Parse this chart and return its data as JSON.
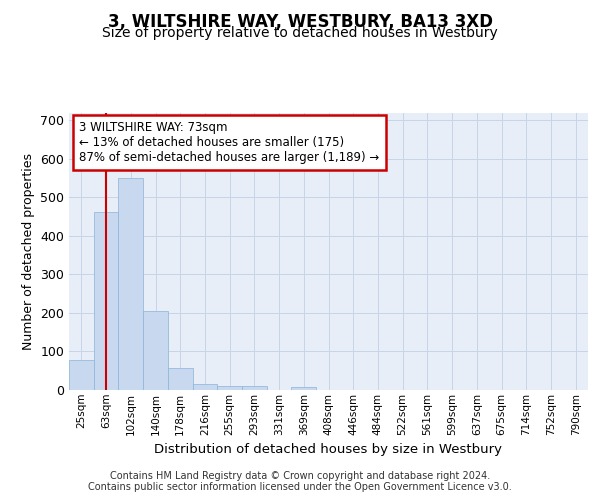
{
  "title": "3, WILTSHIRE WAY, WESTBURY, BA13 3XD",
  "subtitle": "Size of property relative to detached houses in Westbury",
  "xlabel": "Distribution of detached houses by size in Westbury",
  "ylabel": "Number of detached properties",
  "categories": [
    "25sqm",
    "63sqm",
    "102sqm",
    "140sqm",
    "178sqm",
    "216sqm",
    "255sqm",
    "293sqm",
    "331sqm",
    "369sqm",
    "408sqm",
    "446sqm",
    "484sqm",
    "522sqm",
    "561sqm",
    "599sqm",
    "637sqm",
    "675sqm",
    "714sqm",
    "752sqm",
    "790sqm"
  ],
  "values": [
    78,
    463,
    551,
    204,
    57,
    15,
    10,
    10,
    0,
    8,
    0,
    0,
    0,
    0,
    0,
    0,
    0,
    0,
    0,
    0,
    0
  ],
  "bar_color": "#c8d8ef",
  "bar_edge_color": "#8ab4d8",
  "grid_color": "#c8d4e8",
  "bg_color": "#e8eef8",
  "annotation_text": "3 WILTSHIRE WAY: 73sqm\n← 13% of detached houses are smaller (175)\n87% of semi-detached houses are larger (1,189) →",
  "annotation_box_color": "#ffffff",
  "annotation_box_edge_color": "#cc0000",
  "vline_x": 1,
  "vline_color": "#cc0000",
  "ylim": [
    0,
    720
  ],
  "yticks": [
    0,
    100,
    200,
    300,
    400,
    500,
    600,
    700
  ],
  "footer": "Contains HM Land Registry data © Crown copyright and database right 2024.\nContains public sector information licensed under the Open Government Licence v3.0.",
  "title_fontsize": 12,
  "subtitle_fontsize": 10,
  "xlabel_fontsize": 9.5,
  "ylabel_fontsize": 9,
  "tick_fontsize": 7.5,
  "footer_fontsize": 7,
  "ann_fontsize": 8.5
}
